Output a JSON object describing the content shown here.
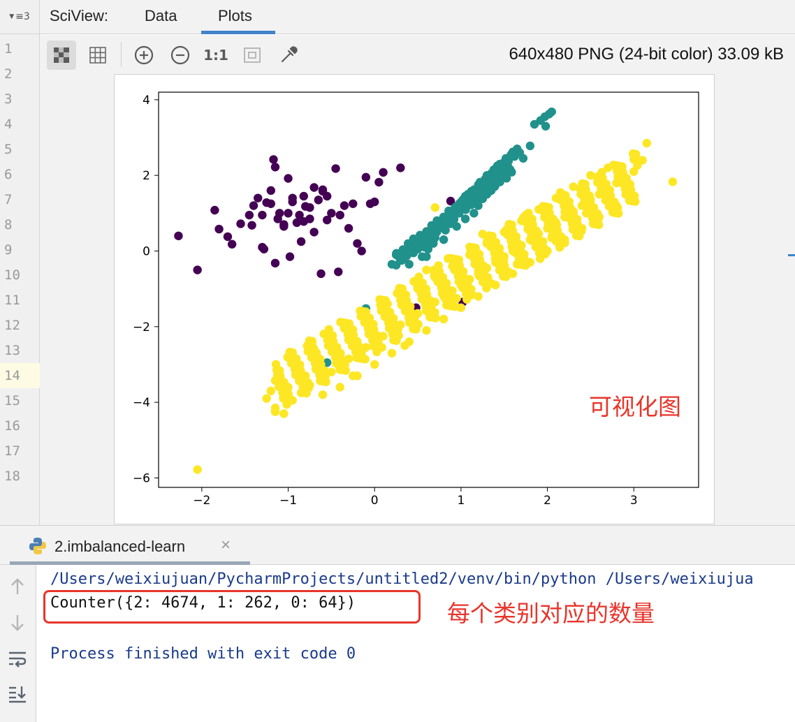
{
  "gutter": {
    "menu_label": "≡3",
    "line_numbers": [
      "1",
      "2",
      "3",
      "4",
      "5",
      "6",
      "7",
      "8",
      "9",
      "10",
      "11",
      "12",
      "13",
      "14",
      "15",
      "16",
      "17",
      "18"
    ],
    "active_line": "14"
  },
  "sciview": {
    "title": "SciView:",
    "tabs": [
      {
        "label": "Data",
        "active": false
      },
      {
        "label": "Plots",
        "active": true
      }
    ]
  },
  "toolbar": {
    "image_info": "640x480 PNG (24-bit color) 33.09 kB",
    "buttons": [
      {
        "icon": "checkerboard-icon",
        "active": true
      },
      {
        "icon": "grid-icon",
        "active": false
      },
      {
        "icon": "zoom-in-icon",
        "active": false
      },
      {
        "icon": "zoom-out-icon",
        "active": false
      },
      {
        "icon": "actual-size-icon",
        "label": "1:1",
        "active": false
      },
      {
        "icon": "fit-window-icon",
        "active": false
      },
      {
        "icon": "color-picker-icon",
        "active": false
      }
    ]
  },
  "chart_data": {
    "type": "scatter",
    "title": "",
    "xlabel": "",
    "ylabel": "",
    "xlim": [
      -2.5,
      3.75
    ],
    "ylim": [
      -6.25,
      4.2
    ],
    "xticks": [
      -2,
      -1,
      0,
      1,
      2,
      3
    ],
    "yticks": [
      -6,
      -4,
      -2,
      0,
      2,
      4
    ],
    "grid": false,
    "series": [
      {
        "color": "#440154",
        "points": [
          [
            -2.27,
            0.4
          ],
          [
            -2.05,
            -0.5
          ],
          [
            -1.85,
            1.08
          ],
          [
            -1.8,
            0.58
          ],
          [
            -1.7,
            0.38
          ],
          [
            -1.65,
            0.18
          ],
          [
            -1.55,
            0.72
          ],
          [
            -1.45,
            0.95
          ],
          [
            -1.42,
            0.68
          ],
          [
            -1.35,
            1.4
          ],
          [
            -1.3,
            0.1
          ],
          [
            -1.25,
            1.28
          ],
          [
            -1.2,
            1.25
          ],
          [
            -1.17,
            2.42
          ],
          [
            -1.15,
            2.22
          ],
          [
            -1.12,
            0.85
          ],
          [
            -1.1,
            1.0
          ],
          [
            -1.05,
            0.7
          ],
          [
            -1.0,
            1.92
          ],
          [
            -0.98,
            -0.15
          ],
          [
            -0.95,
            1.3
          ],
          [
            -0.9,
            0.75
          ],
          [
            -0.87,
            0.95
          ],
          [
            -0.85,
            0.25
          ],
          [
            -0.82,
            0.78
          ],
          [
            -0.8,
            1.18
          ],
          [
            -0.75,
            1.15
          ],
          [
            -0.7,
            0.5
          ],
          [
            -0.65,
            1.35
          ],
          [
            -0.6,
            1.62
          ],
          [
            -0.55,
            1.45
          ],
          [
            -0.5,
            1.0
          ],
          [
            -0.45,
            2.18
          ],
          [
            -0.4,
            0.95
          ],
          [
            -0.35,
            1.2
          ],
          [
            -0.3,
            0.6
          ],
          [
            -0.25,
            1.25
          ],
          [
            -0.2,
            0.2
          ],
          [
            -0.15,
            0.0
          ],
          [
            -0.1,
            1.95
          ],
          [
            -0.05,
            1.25
          ],
          [
            0.0,
            1.3
          ],
          [
            0.05,
            1.82
          ],
          [
            0.1,
            2.08
          ],
          [
            0.3,
            2.2
          ],
          [
            -1.3,
            0.95
          ],
          [
            -1.28,
            0.05
          ],
          [
            -1.15,
            -0.32
          ],
          [
            -1.05,
            0.65
          ],
          [
            -0.82,
            1.45
          ],
          [
            -0.75,
            0.85
          ],
          [
            -1.2,
            1.6
          ],
          [
            -0.62,
            -0.6
          ],
          [
            -0.42,
            -0.55
          ],
          [
            -0.95,
            1.4
          ],
          [
            -1.4,
            1.2
          ],
          [
            -0.7,
            1.68
          ],
          [
            0.48,
            -1.5
          ],
          [
            1.02,
            -1.35
          ],
          [
            0.88,
            1.32
          ],
          [
            0.7,
            0.65
          ],
          [
            -0.55,
            0.82
          ],
          [
            -0.6,
            1.58
          ],
          [
            -1.0,
            1.0
          ]
        ],
        "count": 64
      },
      {
        "color": "#21918c",
        "points": [
          [
            -0.1,
            -1.52
          ],
          [
            0.2,
            -0.35
          ],
          [
            0.25,
            -0.1
          ],
          [
            0.35,
            -0.2
          ],
          [
            0.45,
            -0.05
          ],
          [
            0.5,
            0.05
          ],
          [
            0.55,
            -0.15
          ],
          [
            0.58,
            0.1
          ],
          [
            0.62,
            0.05
          ],
          [
            0.65,
            0.25
          ],
          [
            0.7,
            0.35
          ],
          [
            0.72,
            0.5
          ],
          [
            0.75,
            0.65
          ],
          [
            0.78,
            0.75
          ],
          [
            0.82,
            0.55
          ],
          [
            0.85,
            0.88
          ],
          [
            0.88,
            1.0
          ],
          [
            0.9,
            0.95
          ],
          [
            0.92,
            1.1
          ],
          [
            0.95,
            1.18
          ],
          [
            0.98,
            1.25
          ],
          [
            1.0,
            1.1
          ],
          [
            1.02,
            1.35
          ],
          [
            1.05,
            1.45
          ],
          [
            1.08,
            1.5
          ],
          [
            1.1,
            1.3
          ],
          [
            1.12,
            1.58
          ],
          [
            1.15,
            1.62
          ],
          [
            1.18,
            1.55
          ],
          [
            1.2,
            1.75
          ],
          [
            1.22,
            1.82
          ],
          [
            1.25,
            1.7
          ],
          [
            1.28,
            1.9
          ],
          [
            1.3,
            2.0
          ],
          [
            1.32,
            1.85
          ],
          [
            1.35,
            2.05
          ],
          [
            1.38,
            2.15
          ],
          [
            1.4,
            2.1
          ],
          [
            1.42,
            2.25
          ],
          [
            1.45,
            2.3
          ],
          [
            1.48,
            2.2
          ],
          [
            1.5,
            2.35
          ],
          [
            1.52,
            2.45
          ],
          [
            1.55,
            2.38
          ],
          [
            1.58,
            2.55
          ],
          [
            1.6,
            2.62
          ],
          [
            1.62,
            2.5
          ],
          [
            1.65,
            2.7
          ],
          [
            1.68,
            2.6
          ],
          [
            1.72,
            2.45
          ],
          [
            1.8,
            2.78
          ],
          [
            1.85,
            3.35
          ],
          [
            1.92,
            3.45
          ],
          [
            1.97,
            3.55
          ],
          [
            2.02,
            3.62
          ],
          [
            2.05,
            3.68
          ],
          [
            1.98,
            3.3
          ],
          [
            1.05,
            0.85
          ],
          [
            0.95,
            0.65
          ],
          [
            1.2,
            1.2
          ],
          [
            1.3,
            1.5
          ],
          [
            1.4,
            1.75
          ],
          [
            0.8,
            0.3
          ],
          [
            0.6,
            -0.15
          ],
          [
            0.4,
            -0.35
          ],
          [
            -0.55,
            -2.95
          ],
          [
            0.68,
            0.2
          ],
          [
            0.88,
            0.72
          ],
          [
            1.15,
            1.0
          ],
          [
            1.25,
            1.38
          ],
          [
            1.35,
            1.6
          ]
        ],
        "count": 262
      },
      {
        "color": "#fde725",
        "points": [
          [
            -2.05,
            -5.78
          ],
          [
            -1.25,
            -3.9
          ],
          [
            -1.15,
            -4.15
          ],
          [
            -1.05,
            -4.3
          ],
          [
            -0.95,
            -3.95
          ],
          [
            -0.85,
            -3.75
          ],
          [
            -0.75,
            -3.55
          ],
          [
            -0.6,
            -3.4
          ],
          [
            -0.5,
            -3.2
          ],
          [
            -0.4,
            -3.05
          ],
          [
            -0.3,
            -2.85
          ],
          [
            -0.2,
            -2.7
          ],
          [
            -0.1,
            -2.55
          ],
          [
            0.0,
            -2.4
          ],
          [
            0.1,
            -2.25
          ],
          [
            0.2,
            -2.1
          ],
          [
            0.3,
            -1.95
          ],
          [
            0.4,
            -1.8
          ],
          [
            0.5,
            -1.65
          ],
          [
            0.6,
            -1.5
          ],
          [
            0.7,
            -1.35
          ],
          [
            0.8,
            -1.2
          ],
          [
            0.9,
            -1.05
          ],
          [
            1.0,
            -0.9
          ],
          [
            1.1,
            -0.75
          ],
          [
            1.2,
            -0.6
          ],
          [
            1.3,
            -0.45
          ],
          [
            1.4,
            -0.3
          ],
          [
            1.5,
            -0.15
          ],
          [
            1.6,
            0.0
          ],
          [
            1.7,
            0.15
          ],
          [
            1.8,
            0.3
          ],
          [
            1.9,
            0.45
          ],
          [
            2.0,
            0.6
          ],
          [
            2.1,
            0.75
          ],
          [
            2.2,
            0.9
          ],
          [
            2.3,
            1.05
          ],
          [
            2.4,
            1.2
          ],
          [
            2.5,
            1.35
          ],
          [
            2.6,
            1.5
          ],
          [
            2.7,
            1.65
          ],
          [
            2.8,
            1.8
          ],
          [
            2.9,
            1.95
          ],
          [
            3.0,
            2.1
          ],
          [
            3.1,
            2.4
          ],
          [
            3.15,
            2.85
          ],
          [
            3.45,
            1.83
          ],
          [
            -0.9,
            -3.2
          ],
          [
            -0.7,
            -2.6
          ],
          [
            -0.5,
            -2.4
          ],
          [
            -0.3,
            -2.2
          ],
          [
            -0.1,
            -1.9
          ],
          [
            0.1,
            -1.6
          ],
          [
            0.3,
            -1.3
          ],
          [
            0.5,
            -1.0
          ],
          [
            0.7,
            -0.7
          ],
          [
            0.9,
            -0.4
          ],
          [
            1.1,
            -0.1
          ],
          [
            1.3,
            0.2
          ],
          [
            1.5,
            0.5
          ],
          [
            1.7,
            0.8
          ],
          [
            1.9,
            1.1
          ],
          [
            2.1,
            1.4
          ],
          [
            2.3,
            1.7
          ],
          [
            2.5,
            2.0
          ],
          [
            2.7,
            2.2
          ],
          [
            -0.6,
            -3.8
          ],
          [
            -0.4,
            -3.6
          ],
          [
            -0.2,
            -3.3
          ],
          [
            0.0,
            -3.0
          ],
          [
            0.2,
            -2.7
          ],
          [
            0.4,
            -2.4
          ],
          [
            0.6,
            -2.1
          ],
          [
            0.8,
            -1.8
          ],
          [
            1.0,
            -1.5
          ],
          [
            1.2,
            -1.2
          ],
          [
            1.4,
            -0.9
          ],
          [
            1.6,
            -0.6
          ],
          [
            1.8,
            -0.3
          ],
          [
            2.0,
            0.0
          ],
          [
            2.2,
            0.3
          ],
          [
            2.4,
            0.6
          ],
          [
            2.6,
            0.9
          ],
          [
            2.8,
            1.2
          ],
          [
            -1.0,
            -3.6
          ],
          [
            -0.8,
            -3.3
          ],
          [
            0.15,
            -1.4
          ],
          [
            0.45,
            -2.0
          ],
          [
            0.95,
            -1.25
          ],
          [
            1.45,
            -0.5
          ],
          [
            1.95,
            0.25
          ],
          [
            2.45,
            1.0
          ],
          [
            2.95,
            1.7
          ],
          [
            0.6,
            -0.5
          ],
          [
            0.85,
            -0.2
          ],
          [
            1.25,
            0.45
          ],
          [
            1.75,
            0.95
          ],
          [
            2.15,
            1.55
          ],
          [
            1.65,
            -0.35
          ],
          [
            2.05,
            0.35
          ],
          [
            0.35,
            -2.5
          ],
          [
            -0.25,
            -3.3
          ],
          [
            -1.2,
            -3.7
          ],
          [
            0.65,
            0.6
          ],
          [
            0.7,
            1.15
          ]
        ],
        "count": 4674
      }
    ]
  },
  "run_panel": {
    "tab_label": "2.imbalanced-learn",
    "tab_close": "×",
    "side_icons": [
      "up-arrow-icon",
      "down-arrow-icon",
      "soft-wrap-icon",
      "scroll-to-end-icon"
    ],
    "lines": {
      "path": "/Users/weixiujuan/PycharmProjects/untitled2/venv/bin/python /Users/weixiujua",
      "counter": "Counter({2: 4674, 1: 262, 0: 64})",
      "exit": "Process finished with exit code 0"
    }
  },
  "annotations": {
    "chart": "可视化图",
    "counts": "每个类别对应的数量",
    "color": "#e8352b"
  }
}
